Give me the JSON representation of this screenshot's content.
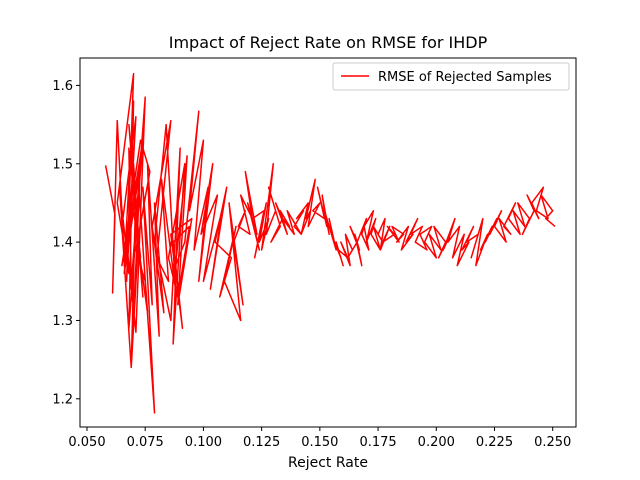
{
  "chart_data": {
    "type": "line",
    "title": "Impact of Reject Rate on RMSE for IHDP",
    "xlabel": "Reject Rate",
    "ylabel": "",
    "xlim": [
      0.047,
      0.26
    ],
    "ylim": [
      1.164,
      1.635
    ],
    "xticks": [
      0.05,
      0.075,
      0.1,
      0.125,
      0.15,
      0.175,
      0.2,
      0.225,
      0.25
    ],
    "xtick_labels": [
      "0.050",
      "0.075",
      "0.100",
      "0.125",
      "0.150",
      "0.175",
      "0.200",
      "0.225",
      "0.250"
    ],
    "yticks": [
      1.2,
      1.3,
      1.4,
      1.5,
      1.6
    ],
    "ytick_labels": [
      "1.2",
      "1.3",
      "1.4",
      "1.5",
      "1.6"
    ],
    "grid": false,
    "legend_position": "top-right",
    "series": [
      {
        "name": "RMSE of Rejected Samples",
        "color": "#ff0000",
        "x": [
          0.058,
          0.062,
          0.061,
          0.063,
          0.066,
          0.064,
          0.068,
          0.063,
          0.07,
          0.067,
          0.071,
          0.065,
          0.069,
          0.073,
          0.066,
          0.07,
          0.068,
          0.072,
          0.069,
          0.074,
          0.067,
          0.071,
          0.075,
          0.069,
          0.068,
          0.073,
          0.07,
          0.076,
          0.072,
          0.066,
          0.07,
          0.074,
          0.068,
          0.072,
          0.069,
          0.071,
          0.065,
          0.073,
          0.077,
          0.071,
          0.075,
          0.079,
          0.074,
          0.078,
          0.076,
          0.081,
          0.079,
          0.083,
          0.078,
          0.086,
          0.08,
          0.085,
          0.082,
          0.088,
          0.084,
          0.079,
          0.086,
          0.09,
          0.087,
          0.092,
          0.085,
          0.089,
          0.094,
          0.087,
          0.091,
          0.086,
          0.095,
          0.089,
          0.093,
          0.088,
          0.092,
          0.098,
          0.094,
          0.1,
          0.096,
          0.102,
          0.098,
          0.104,
          0.099,
          0.106,
          0.1,
          0.108,
          0.103,
          0.11,
          0.105,
          0.112,
          0.107,
          0.114,
          0.109,
          0.116,
          0.111,
          0.117,
          0.113,
          0.118,
          0.115,
          0.12,
          0.116,
          0.121,
          0.118,
          0.123,
          0.119,
          0.124,
          0.121,
          0.126,
          0.122,
          0.127,
          0.124,
          0.128,
          0.125,
          0.13,
          0.127,
          0.131,
          0.128,
          0.133,
          0.129,
          0.134,
          0.131,
          0.136,
          0.133,
          0.137,
          0.134,
          0.139,
          0.136,
          0.14,
          0.138,
          0.142,
          0.139,
          0.143,
          0.14,
          0.145,
          0.142,
          0.146,
          0.144,
          0.148,
          0.145,
          0.15,
          0.147,
          0.152,
          0.149,
          0.153,
          0.151,
          0.154,
          0.152,
          0.156,
          0.154,
          0.157,
          0.155,
          0.159,
          0.157,
          0.16,
          0.158,
          0.162,
          0.159,
          0.163,
          0.161,
          0.164,
          0.162,
          0.166,
          0.163,
          0.167,
          0.165,
          0.168,
          0.166,
          0.17,
          0.168,
          0.171,
          0.169,
          0.173,
          0.17,
          0.174,
          0.172,
          0.176,
          0.173,
          0.177,
          0.175,
          0.178,
          0.176,
          0.18,
          0.177,
          0.182,
          0.179,
          0.184,
          0.181,
          0.186,
          0.183,
          0.188,
          0.185,
          0.19,
          0.187,
          0.192,
          0.189,
          0.194,
          0.191,
          0.196,
          0.193,
          0.198,
          0.195,
          0.2,
          0.197,
          0.202,
          0.199,
          0.204,
          0.201,
          0.206,
          0.203,
          0.208,
          0.205,
          0.21,
          0.207,
          0.212,
          0.209,
          0.214,
          0.211,
          0.216,
          0.213,
          0.218,
          0.215,
          0.22,
          0.217,
          0.222,
          0.219,
          0.224,
          0.221,
          0.226,
          0.223,
          0.228,
          0.225,
          0.23,
          0.227,
          0.232,
          0.229,
          0.234,
          0.231,
          0.236,
          0.233,
          0.238,
          0.235,
          0.24,
          0.237,
          0.242,
          0.239,
          0.244,
          0.241,
          0.246,
          0.243,
          0.248,
          0.245,
          0.25,
          0.247,
          0.251
        ],
        "y": [
          1.498,
          1.435,
          1.335,
          1.555,
          1.38,
          1.47,
          1.36,
          1.45,
          1.615,
          1.35,
          1.56,
          1.42,
          1.24,
          1.5,
          1.37,
          1.58,
          1.29,
          1.45,
          1.34,
          1.53,
          1.4,
          1.285,
          1.585,
          1.345,
          1.52,
          1.38,
          1.44,
          1.31,
          1.48,
          1.36,
          1.5,
          1.33,
          1.55,
          1.4,
          1.24,
          1.47,
          1.37,
          1.53,
          1.49,
          1.39,
          1.35,
          1.182,
          1.47,
          1.32,
          1.5,
          1.28,
          1.45,
          1.31,
          1.42,
          1.555,
          1.38,
          1.35,
          1.48,
          1.34,
          1.55,
          1.4,
          1.3,
          1.52,
          1.27,
          1.5,
          1.38,
          1.33,
          1.42,
          1.4,
          1.29,
          1.41,
          1.43,
          1.32,
          1.51,
          1.37,
          1.4,
          1.567,
          1.44,
          1.53,
          1.39,
          1.47,
          1.35,
          1.5,
          1.41,
          1.46,
          1.35,
          1.44,
          1.34,
          1.47,
          1.4,
          1.38,
          1.33,
          1.42,
          1.35,
          1.3,
          1.45,
          1.32,
          1.4,
          1.44,
          1.42,
          1.41,
          1.46,
          1.43,
          1.49,
          1.41,
          1.45,
          1.39,
          1.43,
          1.44,
          1.38,
          1.45,
          1.4,
          1.43,
          1.39,
          1.5,
          1.41,
          1.44,
          1.47,
          1.42,
          1.4,
          1.43,
          1.45,
          1.41,
          1.44,
          1.42,
          1.43,
          1.41,
          1.44,
          1.42,
          1.43,
          1.41,
          1.42,
          1.44,
          1.43,
          1.45,
          1.41,
          1.44,
          1.43,
          1.48,
          1.42,
          1.45,
          1.44,
          1.43,
          1.47,
          1.42,
          1.46,
          1.41,
          1.44,
          1.4,
          1.43,
          1.39,
          1.41,
          1.38,
          1.4,
          1.37,
          1.39,
          1.38,
          1.4,
          1.37,
          1.41,
          1.39,
          1.38,
          1.4,
          1.42,
          1.39,
          1.41,
          1.37,
          1.4,
          1.43,
          1.41,
          1.39,
          1.42,
          1.44,
          1.4,
          1.43,
          1.41,
          1.39,
          1.42,
          1.4,
          1.41,
          1.43,
          1.39,
          1.42,
          1.4,
          1.41,
          1.42,
          1.4,
          1.42,
          1.41,
          1.4,
          1.42,
          1.39,
          1.41,
          1.4,
          1.43,
          1.41,
          1.42,
          1.4,
          1.39,
          1.41,
          1.42,
          1.4,
          1.38,
          1.41,
          1.39,
          1.42,
          1.4,
          1.38,
          1.41,
          1.39,
          1.43,
          1.4,
          1.42,
          1.38,
          1.41,
          1.37,
          1.4,
          1.39,
          1.42,
          1.4,
          1.41,
          1.38,
          1.43,
          1.37,
          1.41,
          1.39,
          1.42,
          1.4,
          1.43,
          1.41,
          1.44,
          1.42,
          1.4,
          1.43,
          1.41,
          1.42,
          1.45,
          1.43,
          1.41,
          1.44,
          1.42,
          1.45,
          1.43,
          1.41,
          1.44,
          1.46,
          1.43,
          1.45,
          1.47,
          1.44,
          1.43,
          1.46,
          1.44,
          1.43,
          1.42
        ]
      }
    ]
  }
}
